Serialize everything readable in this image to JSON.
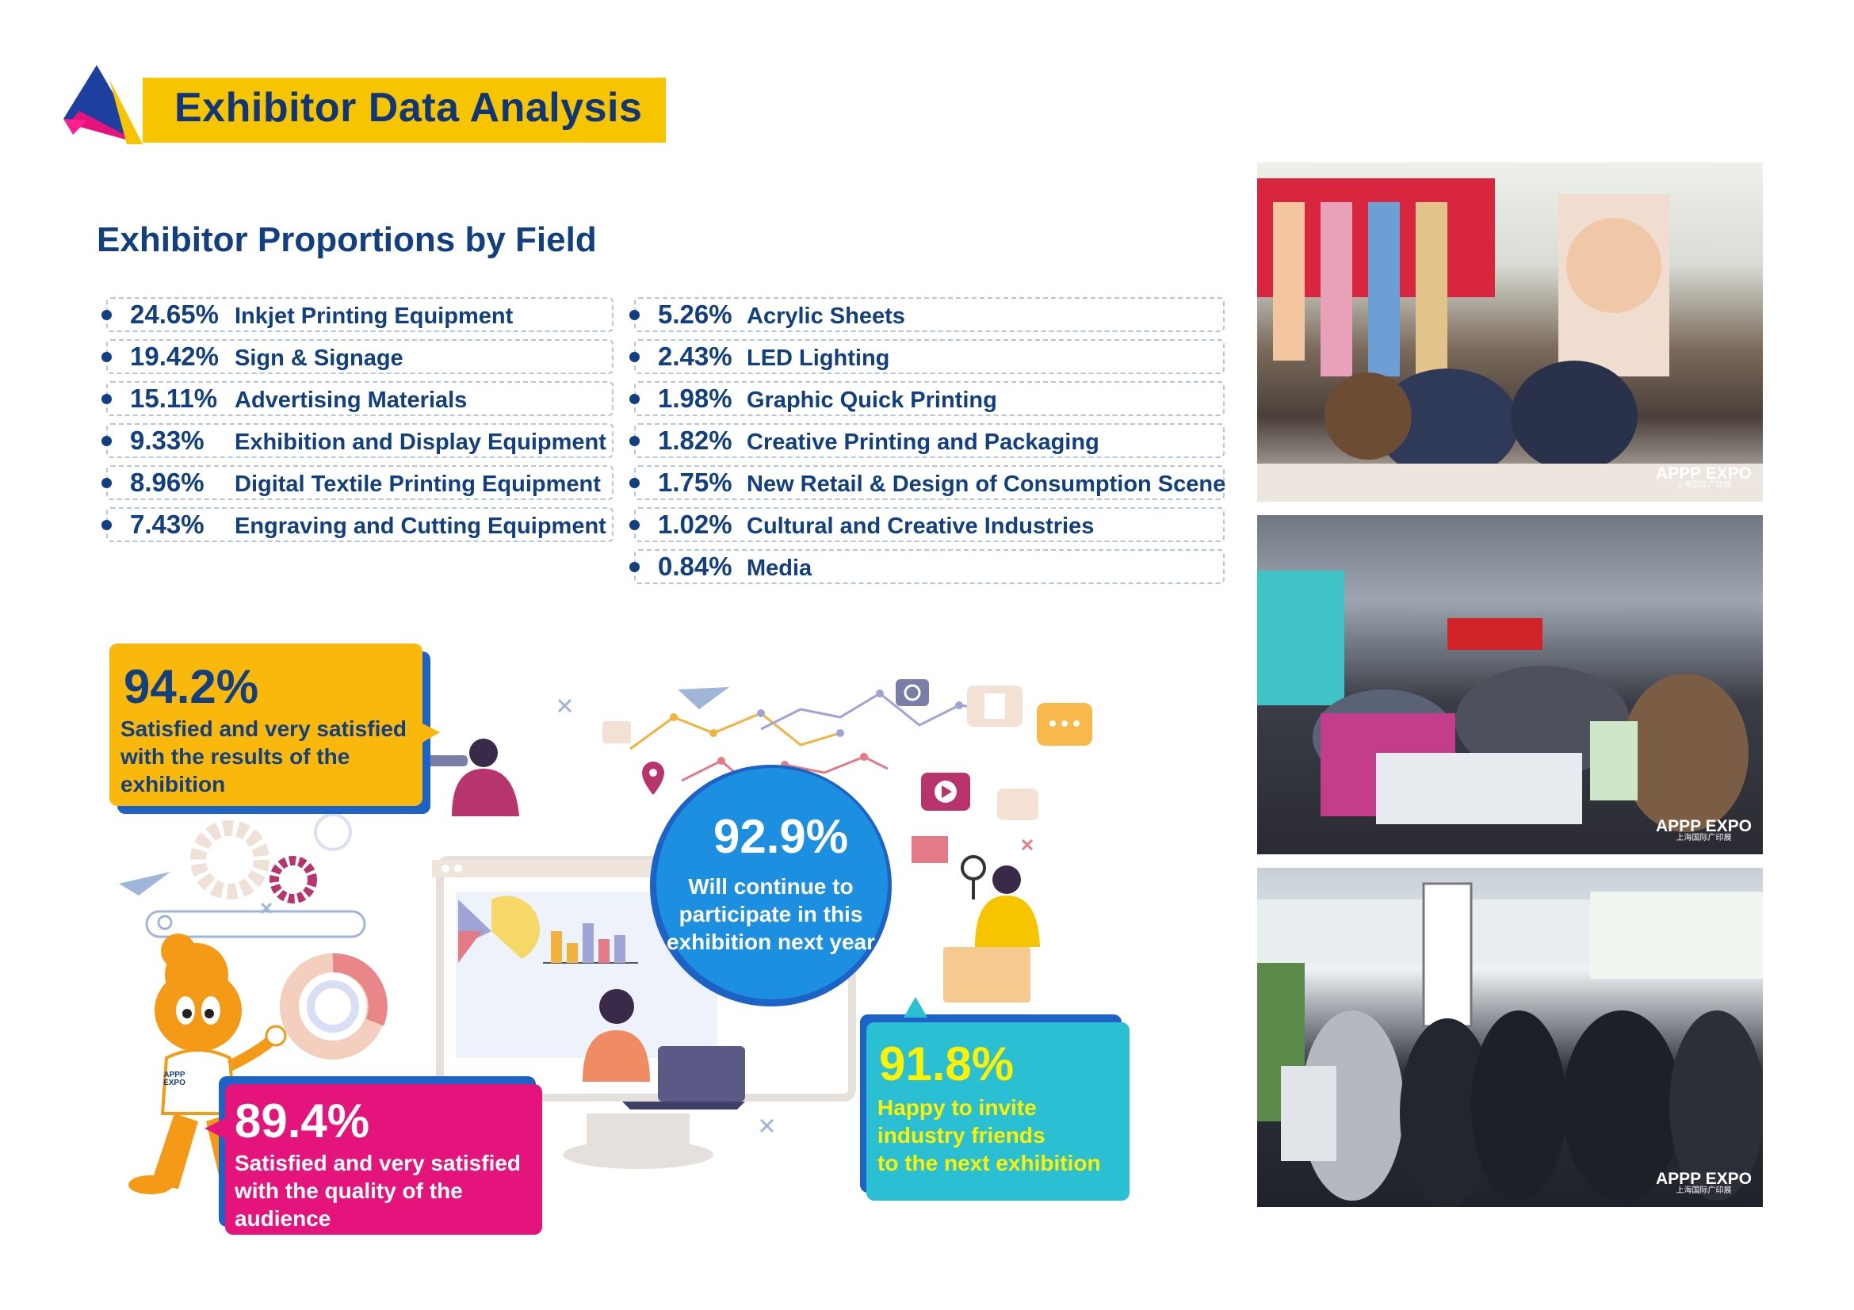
{
  "header": {
    "title": "Exhibitor Data Analysis"
  },
  "section": {
    "title": "Exhibitor Proportions by Field"
  },
  "fields_left": [
    {
      "pct": "24.65%",
      "label": "Inkjet Printing Equipment"
    },
    {
      "pct": "19.42%",
      "label": "Sign & Signage"
    },
    {
      "pct": "15.11%",
      "label": "Advertising Materials"
    },
    {
      "pct": "9.33%",
      "label": "Exhibition and Display Equipment"
    },
    {
      "pct": "8.96%",
      "label": "Digital Textile Printing Equipment"
    },
    {
      "pct": "7.43%",
      "label": "Engraving  and Cutting Equipment"
    }
  ],
  "fields_right": [
    {
      "pct": "5.26%",
      "label": "Acrylic Sheets"
    },
    {
      "pct": "2.43%",
      "label": "LED Lighting"
    },
    {
      "pct": "1.98%",
      "label": "Graphic Quick Printing"
    },
    {
      "pct": "1.82%",
      "label": "Creative Printing and Packaging"
    },
    {
      "pct": "1.75%",
      "label": "New Retail & Design of Consumption Scene"
    },
    {
      "pct": "1.02%",
      "label": "Cultural and Creative Industries"
    },
    {
      "pct": "0.84%",
      "label": "Media"
    }
  ],
  "stats": {
    "results": {
      "value": "94.2%",
      "lines": [
        "Satisfied and very satisfied",
        "with the results of the",
        "exhibition"
      ],
      "color": "#f9b80b"
    },
    "audience": {
      "value": "89.4%",
      "lines": [
        "Satisfied and very satisfied",
        "with the quality of the",
        "audience"
      ],
      "color": "#e4147c"
    },
    "continue": {
      "value": "92.9%",
      "lines": [
        "Will continue to",
        "participate in this",
        "exhibition next year"
      ],
      "color": "#1d8fe0"
    },
    "invite": {
      "value": "91.8%",
      "lines": [
        "Happy to invite",
        "industry friends",
        "to the next exhibition"
      ],
      "color": "#2bbfd3"
    }
  },
  "mascot": {
    "badge": "APPP EXPO"
  },
  "photos": {
    "watermark": "APPP EXPO",
    "watermark_sub": "上海国际广印展"
  },
  "colors": {
    "navy": "#123f80",
    "yellow": "#f7c500",
    "magenta": "#e4147c",
    "cyan": "#2bbfd3",
    "blue": "#1d8fe0"
  }
}
